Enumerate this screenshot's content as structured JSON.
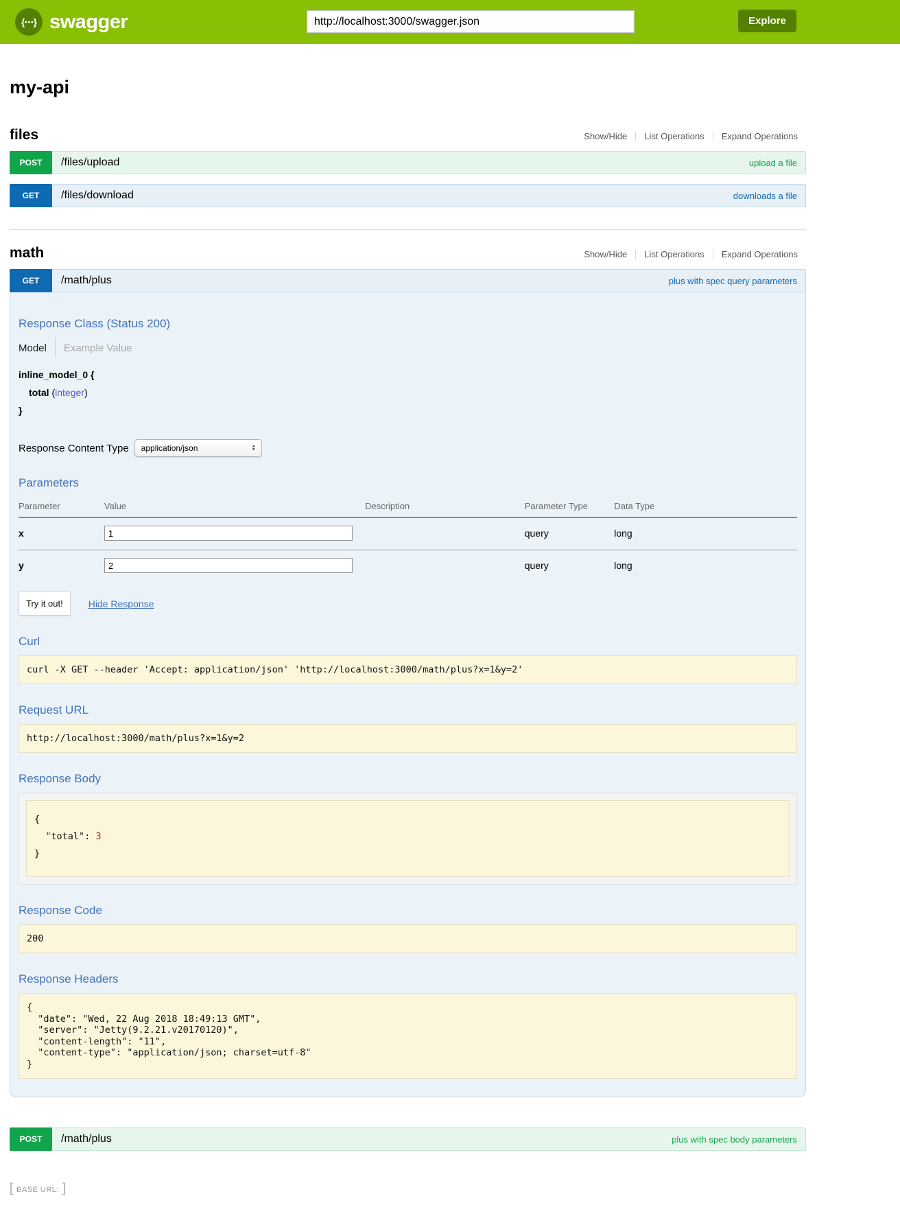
{
  "colors": {
    "header_green": "#89bf04",
    "brand_dark_green": "#547f00",
    "get_blue": "#0f6ab4",
    "post_green": "#10a54a",
    "get_row_bg": "#e7f0f7",
    "post_row_bg": "#e7f6ec",
    "op_content_bg": "#ebf3f9",
    "code_box_bg": "#fcf6db",
    "heading_blue": "#4272b8",
    "prop_type_purple": "#5555cc",
    "json_number_red": "#a0342f"
  },
  "icons": {
    "logo_braces": "{⋯}",
    "select_arrow_up": "▲",
    "select_arrow_down": "▼"
  },
  "header": {
    "brand": "swagger",
    "url_value": "http://localhost:3000/swagger.json",
    "explore_label": "Explore"
  },
  "page": {
    "title": "my-api"
  },
  "section_controls": {
    "show_hide": "Show/Hide",
    "list_operations": "List Operations",
    "expand_operations": "Expand Operations"
  },
  "files_section": {
    "title": "files",
    "upload": {
      "method": "POST",
      "path": "/files/upload",
      "summary": "upload a file"
    },
    "download": {
      "method": "GET",
      "path": "/files/download",
      "summary": "downloads a file"
    }
  },
  "math_section": {
    "title": "math",
    "get_plus": {
      "method": "GET",
      "path": "/math/plus",
      "summary": "plus with spec query parameters"
    },
    "post_plus": {
      "method": "POST",
      "path": "/math/plus",
      "summary": "plus with spec body parameters"
    }
  },
  "operation": {
    "response_class": {
      "heading": "Response Class (Status 200)",
      "model_tab": "Model",
      "example_tab": "Example Value"
    },
    "signature": {
      "model_open": "inline_model_0 {",
      "prop_name": "total",
      "paren_open": "(",
      "prop_type": "integer",
      "paren_close": ")",
      "model_close": "}"
    },
    "content_type": {
      "label": "Response Content Type",
      "selected": "application/json"
    },
    "parameters": {
      "heading": "Parameters",
      "columns": [
        "Parameter",
        "Value",
        "Description",
        "Parameter Type",
        "Data Type"
      ],
      "rows": [
        {
          "name": "x",
          "value": "1",
          "description": "",
          "param_type": "query",
          "data_type": "long"
        },
        {
          "name": "y",
          "value": "2",
          "description": "",
          "param_type": "query",
          "data_type": "long"
        }
      ]
    },
    "actions": {
      "try_it_out": "Try it out!",
      "hide_response": "Hide Response"
    },
    "curl": {
      "heading": "Curl",
      "command": "curl -X GET --header 'Accept: application/json' 'http://localhost:3000/math/plus?x=1&y=2'"
    },
    "request_url": {
      "heading": "Request URL",
      "value": "http://localhost:3000/math/plus?x=1&y=2"
    },
    "response_body": {
      "heading": "Response Body",
      "open": "{",
      "key": "\"total\"",
      "colon": ": ",
      "value": "3",
      "close": "}"
    },
    "response_code": {
      "heading": "Response Code",
      "value": "200"
    },
    "response_headers": {
      "heading": "Response Headers",
      "json": "{\n  \"date\": \"Wed, 22 Aug 2018 18:49:13 GMT\",\n  \"server\": \"Jetty(9.2.21.v20170120)\",\n  \"content-length\": \"11\",\n  \"content-type\": \"application/json; charset=utf-8\"\n}"
    }
  },
  "footer": {
    "bracket_open": "[",
    "base_url_label": "BASE URL:",
    "bracket_close": "]"
  }
}
